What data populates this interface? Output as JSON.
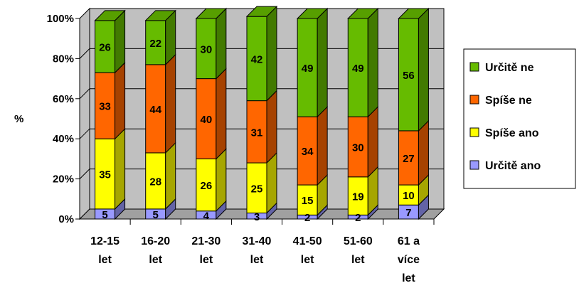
{
  "chart_data": {
    "type": "bar",
    "stacked": true,
    "percent": true,
    "three_d": true,
    "ylabel": "%",
    "ylim": [
      0,
      100
    ],
    "yticks": [
      "0%",
      "20%",
      "40%",
      "60%",
      "80%",
      "100%"
    ],
    "grid": true,
    "legend_position": "right",
    "categories": [
      [
        "12-15",
        "let"
      ],
      [
        "16-20",
        "let"
      ],
      [
        "21-30",
        "let"
      ],
      [
        "31-40",
        "let"
      ],
      [
        "41-50",
        "let"
      ],
      [
        "51-60",
        "let"
      ],
      [
        "61 a",
        "více",
        "let"
      ]
    ],
    "series": [
      {
        "name": "Určitě ano",
        "color": "#9999ff",
        "values": [
          5,
          5,
          4,
          3,
          2,
          2,
          7
        ]
      },
      {
        "name": "Spíše ano",
        "color": "#ffff00",
        "values": [
          35,
          28,
          26,
          25,
          15,
          19,
          10
        ]
      },
      {
        "name": "Spíše ne",
        "color": "#ff6600",
        "values": [
          33,
          44,
          40,
          31,
          34,
          30,
          27
        ]
      },
      {
        "name": "Určitě ne",
        "color": "#66bb00",
        "values": [
          26,
          22,
          30,
          42,
          49,
          49,
          56
        ]
      }
    ],
    "colors": {
      "wall": "#c0c0c0",
      "floor": "#a0a0a0",
      "gridline": "#000000"
    }
  }
}
